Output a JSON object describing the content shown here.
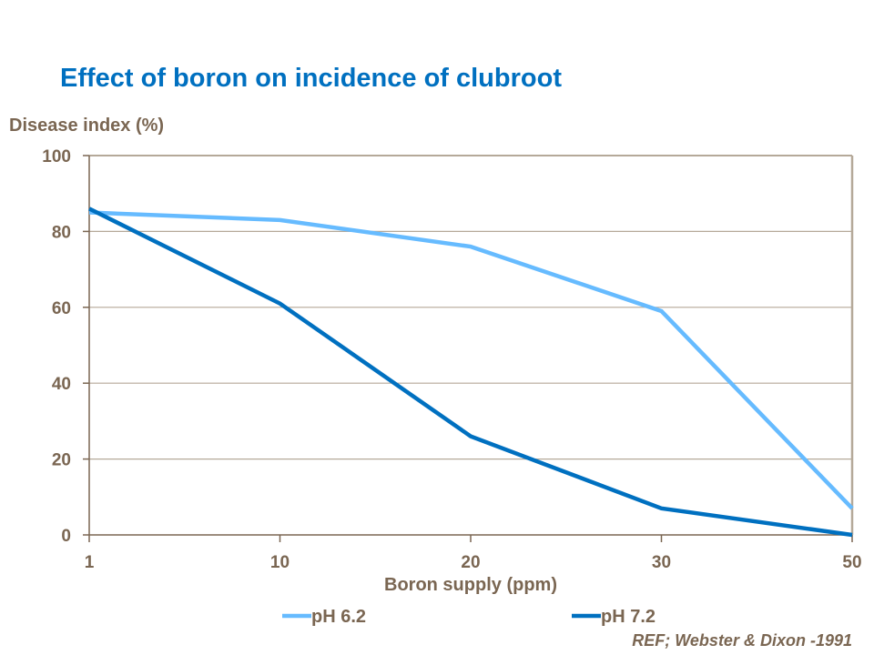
{
  "chart_data": {
    "type": "line",
    "title": "Effect of boron on incidence of clubroot",
    "xlabel": "Boron supply (ppm)",
    "ylabel": "Disease index (%)",
    "categories": [
      "1",
      "10",
      "20",
      "30",
      "50"
    ],
    "ylim": [
      0,
      100
    ],
    "yticks": [
      0,
      20,
      40,
      60,
      80,
      100
    ],
    "grid": true,
    "legend": "bottom",
    "series": [
      {
        "name": "pH 6.2",
        "color": "#66BBFF",
        "values": [
          85,
          83,
          76,
          59,
          7
        ]
      },
      {
        "name": "pH 7.2",
        "color": "#0070C0",
        "values": [
          86,
          61,
          26,
          7,
          0
        ]
      }
    ],
    "annotation": "REF; Webster & Dixon -1991"
  }
}
